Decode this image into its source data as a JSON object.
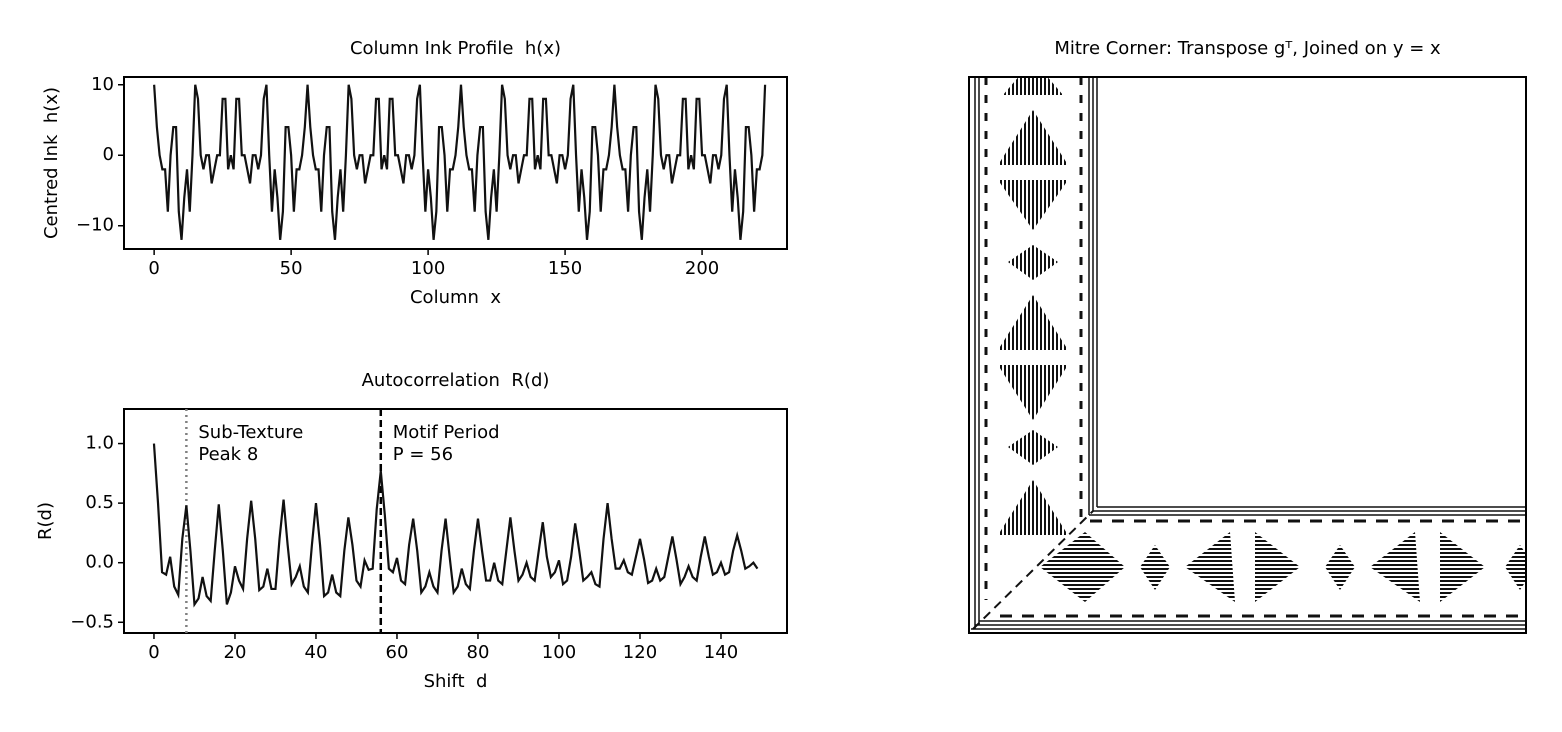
{
  "chart_data": [
    {
      "type": "line",
      "title": "Column Ink Profile  h(x)",
      "xlabel": "Column  x",
      "ylabel": "Centred Ink  h(x)",
      "xlim": [
        -11,
        231
      ],
      "ylim": [
        -13.3,
        11.1
      ],
      "xticks": [
        0,
        50,
        100,
        150,
        200
      ],
      "yticks": [
        {
          "value": -10,
          "label": "−10"
        },
        0,
        10
      ],
      "series": [
        {
          "color": "#111111",
          "x": [
            0,
            1,
            2,
            3,
            4,
            5,
            6,
            7,
            8,
            9,
            10,
            11,
            12,
            13,
            14,
            15,
            16,
            17,
            18,
            19,
            20,
            21,
            22,
            23,
            24,
            25,
            26,
            27,
            28,
            29,
            30,
            31,
            32,
            33,
            34,
            35,
            36,
            37,
            38,
            39,
            40,
            41,
            42,
            43,
            44,
            45,
            46,
            47,
            48,
            49,
            50,
            51,
            52,
            53,
            54,
            55,
            56,
            57,
            58,
            59,
            60,
            61,
            62,
            63,
            64,
            65,
            66,
            67,
            68,
            69,
            70,
            71,
            72,
            73,
            74,
            75,
            76,
            77,
            78,
            79,
            80,
            81,
            82,
            83,
            84,
            85,
            86,
            87,
            88,
            89,
            90,
            91,
            92,
            93,
            94,
            95,
            96,
            97,
            98,
            99,
            100,
            101,
            102,
            103,
            104,
            105,
            106,
            107,
            108,
            109,
            110,
            111,
            112,
            113,
            114,
            115,
            116,
            117,
            118,
            119,
            120,
            121,
            122,
            123,
            124,
            125,
            126,
            127,
            128,
            129,
            130,
            131,
            132,
            133,
            134,
            135,
            136,
            137,
            138,
            139,
            140,
            141,
            142,
            143,
            144,
            145,
            146,
            147,
            148,
            149,
            150,
            151,
            152,
            153,
            154,
            155,
            156,
            157,
            158,
            159,
            160,
            161,
            162,
            163,
            164,
            165,
            166,
            167,
            168,
            169,
            170,
            171,
            172,
            173,
            174,
            175,
            176,
            177,
            178,
            179,
            180,
            181,
            182,
            183,
            184,
            185,
            186,
            187,
            188,
            189,
            190,
            191,
            192,
            193,
            194,
            195,
            196,
            197,
            198,
            199,
            200,
            201,
            202,
            203,
            204,
            205,
            206,
            207,
            208,
            209,
            210,
            211,
            212,
            213,
            214,
            215,
            216,
            217,
            218,
            219,
            220,
            221,
            222,
            223
          ],
          "values": [
            10,
            4,
            0,
            -2,
            -2,
            -8,
            0,
            4,
            4,
            -8,
            -12,
            -6,
            -2,
            -8,
            0,
            10,
            8,
            0,
            -2,
            0,
            0,
            -4,
            -2,
            0,
            0,
            8,
            8,
            -2,
            0,
            -2,
            8,
            8,
            0,
            0,
            -2,
            -4,
            0,
            0,
            -2,
            0,
            8,
            10,
            0,
            -8,
            -2,
            -6,
            -12,
            -8,
            4,
            4,
            0,
            -8,
            -2,
            -2,
            0,
            4,
            10,
            4,
            0,
            -2,
            -2,
            -8,
            0,
            4,
            4,
            -8,
            -12,
            -6,
            -2,
            -8,
            0,
            10,
            8,
            0,
            -2,
            0,
            0,
            -4,
            -2,
            0,
            0,
            8,
            8,
            -2,
            0,
            -2,
            8,
            8,
            0,
            0,
            -2,
            -4,
            0,
            0,
            -2,
            0,
            8,
            10,
            0,
            -8,
            -2,
            -6,
            -12,
            -8,
            4,
            4,
            0,
            -8,
            -2,
            -2,
            0,
            4,
            10,
            4,
            0,
            -2,
            -2,
            -8,
            0,
            4,
            4,
            -8,
            -12,
            -6,
            -2,
            -8,
            0,
            10,
            8,
            0,
            -2,
            0,
            0,
            -4,
            -2,
            0,
            0,
            8,
            8,
            -2,
            0,
            -2,
            8,
            8,
            0,
            0,
            -2,
            -4,
            0,
            0,
            -2,
            0,
            8,
            10,
            0,
            -8,
            -2,
            -6,
            -12,
            -8,
            4,
            4,
            0,
            -8,
            -2,
            -2,
            0,
            4,
            10,
            4,
            0,
            -2,
            -2,
            -8,
            0,
            4,
            4,
            -8,
            -12,
            -6,
            -2,
            -8,
            0,
            10,
            8,
            0,
            -2,
            0,
            0,
            -4,
            -2,
            0,
            0,
            8,
            8,
            -2,
            0,
            -2,
            8,
            8,
            0,
            0,
            -2,
            -4,
            0,
            0,
            -2,
            0,
            8,
            10,
            0,
            -8,
            -2,
            -6,
            -12,
            -8,
            4,
            4,
            0,
            -8,
            -2,
            -2,
            0,
            10
          ]
        }
      ]
    },
    {
      "type": "line",
      "title": "Autocorrelation  R(d)",
      "xlabel": "Shift  d",
      "ylabel": "R(d)",
      "xlim": [
        -7.4,
        156.3
      ],
      "ylim": [
        -0.59,
        1.29
      ],
      "xticks": [
        0,
        20,
        40,
        60,
        80,
        100,
        120,
        140
      ],
      "yticks": [
        {
          "value": -0.5,
          "label": "−0.5"
        },
        {
          "value": 0,
          "label": "0.0"
        },
        0.5,
        {
          "value": 1,
          "label": "1.0"
        }
      ],
      "vlines": [
        {
          "x": 8,
          "color": "#808080",
          "style": "dotted",
          "text": [
            "Sub-Texture",
            "Peak 8"
          ]
        },
        {
          "x": 56,
          "color": "#000000",
          "style": "dashed",
          "text": [
            "Motif Period",
            "P = 56"
          ]
        }
      ],
      "series": [
        {
          "color": "#111111",
          "x": [
            0,
            1,
            2,
            3,
            4,
            5,
            6,
            7,
            8,
            9,
            10,
            11,
            12,
            13,
            14,
            15,
            16,
            17,
            18,
            19,
            20,
            21,
            22,
            23,
            24,
            25,
            26,
            27,
            28,
            29,
            30,
            31,
            32,
            33,
            34,
            35,
            36,
            37,
            38,
            39,
            40,
            41,
            42,
            43,
            44,
            45,
            46,
            47,
            48,
            49,
            50,
            51,
            52,
            53,
            54,
            55,
            56,
            57,
            58,
            59,
            60,
            61,
            62,
            63,
            64,
            65,
            66,
            67,
            68,
            69,
            70,
            71,
            72,
            73,
            74,
            75,
            76,
            77,
            78,
            79,
            80,
            81,
            82,
            83,
            84,
            85,
            86,
            87,
            88,
            89,
            90,
            91,
            92,
            93,
            94,
            95,
            96,
            97,
            98,
            99,
            100,
            101,
            102,
            103,
            104,
            105,
            106,
            107,
            108,
            109,
            110,
            111,
            112,
            113,
            114,
            115,
            116,
            117,
            118,
            119,
            120,
            121,
            122,
            123,
            124,
            125,
            126,
            127,
            128,
            129,
            130,
            131,
            132,
            133,
            134,
            135,
            136,
            137,
            138,
            139,
            140,
            141,
            142,
            143,
            144,
            145,
            146,
            147,
            148,
            149
          ],
          "values": [
            1.0,
            0.5,
            -0.08,
            -0.1,
            0.05,
            -0.2,
            -0.27,
            0.2,
            0.48,
            0.1,
            -0.35,
            -0.3,
            -0.12,
            -0.28,
            -0.32,
            0.1,
            0.49,
            0.1,
            -0.35,
            -0.25,
            -0.03,
            -0.15,
            -0.22,
            0.2,
            0.52,
            0.2,
            -0.23,
            -0.2,
            -0.05,
            -0.22,
            -0.22,
            0.2,
            0.53,
            0.15,
            -0.18,
            -0.12,
            -0.03,
            -0.2,
            -0.25,
            0.15,
            0.5,
            0.15,
            -0.28,
            -0.25,
            -0.1,
            -0.25,
            -0.28,
            0.1,
            0.38,
            0.15,
            -0.15,
            -0.2,
            0.02,
            -0.06,
            -0.05,
            0.45,
            0.77,
            0.4,
            -0.05,
            -0.08,
            0.04,
            -0.15,
            -0.18,
            0.15,
            0.37,
            0.1,
            -0.25,
            -0.2,
            -0.08,
            -0.2,
            -0.25,
            0.1,
            0.37,
            0.05,
            -0.25,
            -0.2,
            -0.05,
            -0.18,
            -0.22,
            0.1,
            0.37,
            0.1,
            -0.15,
            -0.15,
            0.0,
            -0.15,
            -0.18,
            0.1,
            0.38,
            0.1,
            -0.15,
            -0.1,
            0.0,
            -0.12,
            -0.15,
            0.1,
            0.34,
            0.05,
            -0.12,
            -0.08,
            0.02,
            -0.18,
            -0.15,
            0.05,
            0.33,
            0.1,
            -0.15,
            -0.12,
            -0.08,
            -0.18,
            -0.2,
            0.2,
            0.5,
            0.2,
            -0.05,
            -0.05,
            0.02,
            -0.08,
            -0.1,
            0.05,
            0.2,
            0.03,
            -0.17,
            -0.15,
            -0.05,
            -0.15,
            -0.12,
            0.05,
            0.22,
            0.03,
            -0.18,
            -0.12,
            -0.03,
            -0.12,
            -0.15,
            0.05,
            0.22,
            0.05,
            -0.1,
            -0.08,
            0.0,
            -0.1,
            -0.08,
            0.1,
            0.23,
            0.1,
            -0.05,
            -0.03,
            0.0,
            -0.05
          ]
        }
      ]
    },
    {
      "type": "image",
      "title": "Mitre Corner: Transpose gᵀ, Joined on y = x"
    }
  ]
}
